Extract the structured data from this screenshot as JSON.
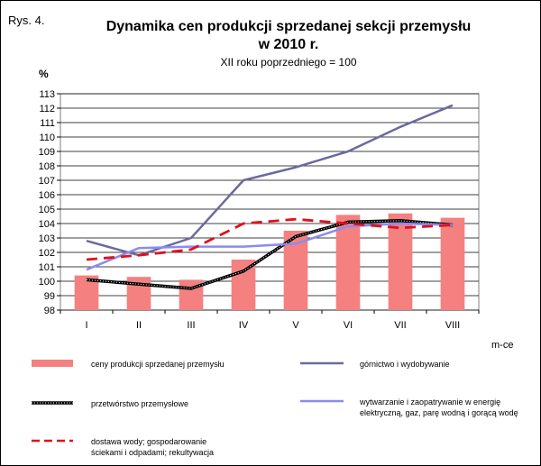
{
  "figure_label": "Rys. 4.",
  "chart_data": {
    "type": "bar",
    "title_line1": "Dynamika cen produkcji sprzedanej sekcji przemysłu",
    "title_line2": "w 2010 r.",
    "subtitle": "XII roku poprzedniego = 100",
    "ylabel": "%",
    "xlabel": "m-ce",
    "ylim": [
      98,
      113
    ],
    "yticks": [
      98,
      99,
      100,
      101,
      102,
      103,
      104,
      105,
      106,
      107,
      108,
      109,
      110,
      111,
      112,
      113
    ],
    "grid": true,
    "categories": [
      "I",
      "II",
      "III",
      "IV",
      "V",
      "VI",
      "VII",
      "VIII"
    ],
    "series": [
      {
        "name": "ceny produkcji sprzedanej przemysłu",
        "kind": "bar",
        "color": "#f58080",
        "values": [
          100.4,
          100.3,
          100.1,
          101.5,
          103.5,
          104.6,
          104.7,
          104.4
        ]
      },
      {
        "name": "górnictwo i wydobywanie",
        "kind": "line",
        "style": "solid",
        "color": "#6b6a9e",
        "values": [
          102.8,
          101.8,
          103.0,
          107.0,
          107.9,
          109.0,
          110.7,
          112.2
        ]
      },
      {
        "name": "przetwórstwo przemysłowe",
        "kind": "line",
        "style": "dotted-black",
        "color": "#000000",
        "values": [
          100.1,
          99.8,
          99.5,
          100.7,
          103.1,
          104.1,
          104.2,
          103.9
        ]
      },
      {
        "name": "wytwarzanie  i zaopatrywanie  w energię elektryczną,  gaz, parę wodną i gorącą wodę",
        "kind": "line",
        "style": "solid",
        "color": "#8b8bf0",
        "values": [
          100.8,
          102.3,
          102.4,
          102.4,
          102.6,
          103.8,
          104.0,
          103.9
        ]
      },
      {
        "name": "dostawa wody; gospodarowanie ściekami i odpadami; rekultywacja",
        "kind": "line",
        "style": "dashed",
        "color": "#e0101a",
        "values": [
          101.5,
          101.8,
          102.2,
          104.0,
          104.3,
          104.0,
          103.7,
          103.9
        ]
      }
    ],
    "legend_lines": {
      "bar": [
        "ceny produkcji sprzedanej przemysłu"
      ],
      "gornictwo": [
        "górnictwo i wydobywanie"
      ],
      "przetworstwo": [
        "przetwórstwo przemysłowe"
      ],
      "energia": [
        "wytwarzanie  i zaopatrywanie  w energię",
        "elektryczną,  gaz, parę wodną i gorącą wodę"
      ],
      "woda": [
        "dostawa wody; gospodarowanie",
        "ściekami i odpadami; rekultywacja"
      ]
    }
  }
}
